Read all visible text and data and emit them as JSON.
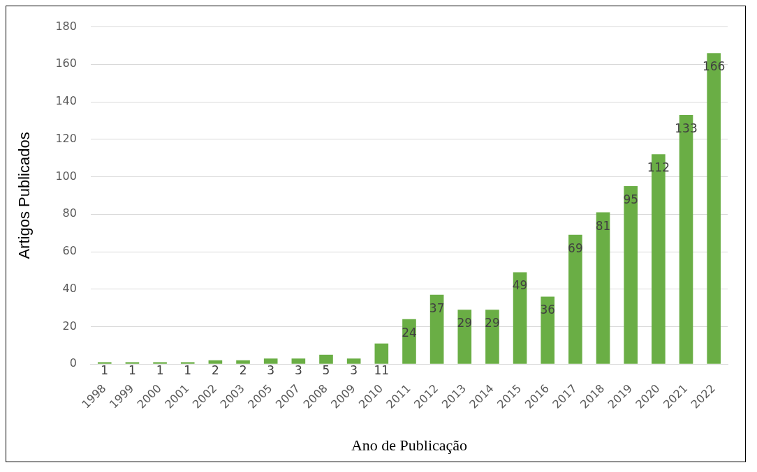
{
  "chart_data": {
    "type": "bar",
    "xlabel": "Ano de Publicação",
    "ylabel": "Artigos Publicados",
    "categories": [
      "1998",
      "1999",
      "2000",
      "2001",
      "2002",
      "2003",
      "2005",
      "2007",
      "2008",
      "2009",
      "2010",
      "2011",
      "2012",
      "2013",
      "2014",
      "2015",
      "2016",
      "2017",
      "2018",
      "2019",
      "2020",
      "2021",
      "2022"
    ],
    "values": [
      1,
      1,
      1,
      1,
      2,
      2,
      3,
      3,
      5,
      3,
      11,
      24,
      37,
      29,
      29,
      49,
      36,
      69,
      81,
      95,
      112,
      133,
      166
    ],
    "color": "#6aae45",
    "ylim": [
      0,
      180
    ],
    "yticks": [
      0,
      20,
      40,
      60,
      80,
      100,
      120,
      140,
      160,
      180
    ],
    "grid": "y",
    "data_labels": true,
    "legend": false
  }
}
